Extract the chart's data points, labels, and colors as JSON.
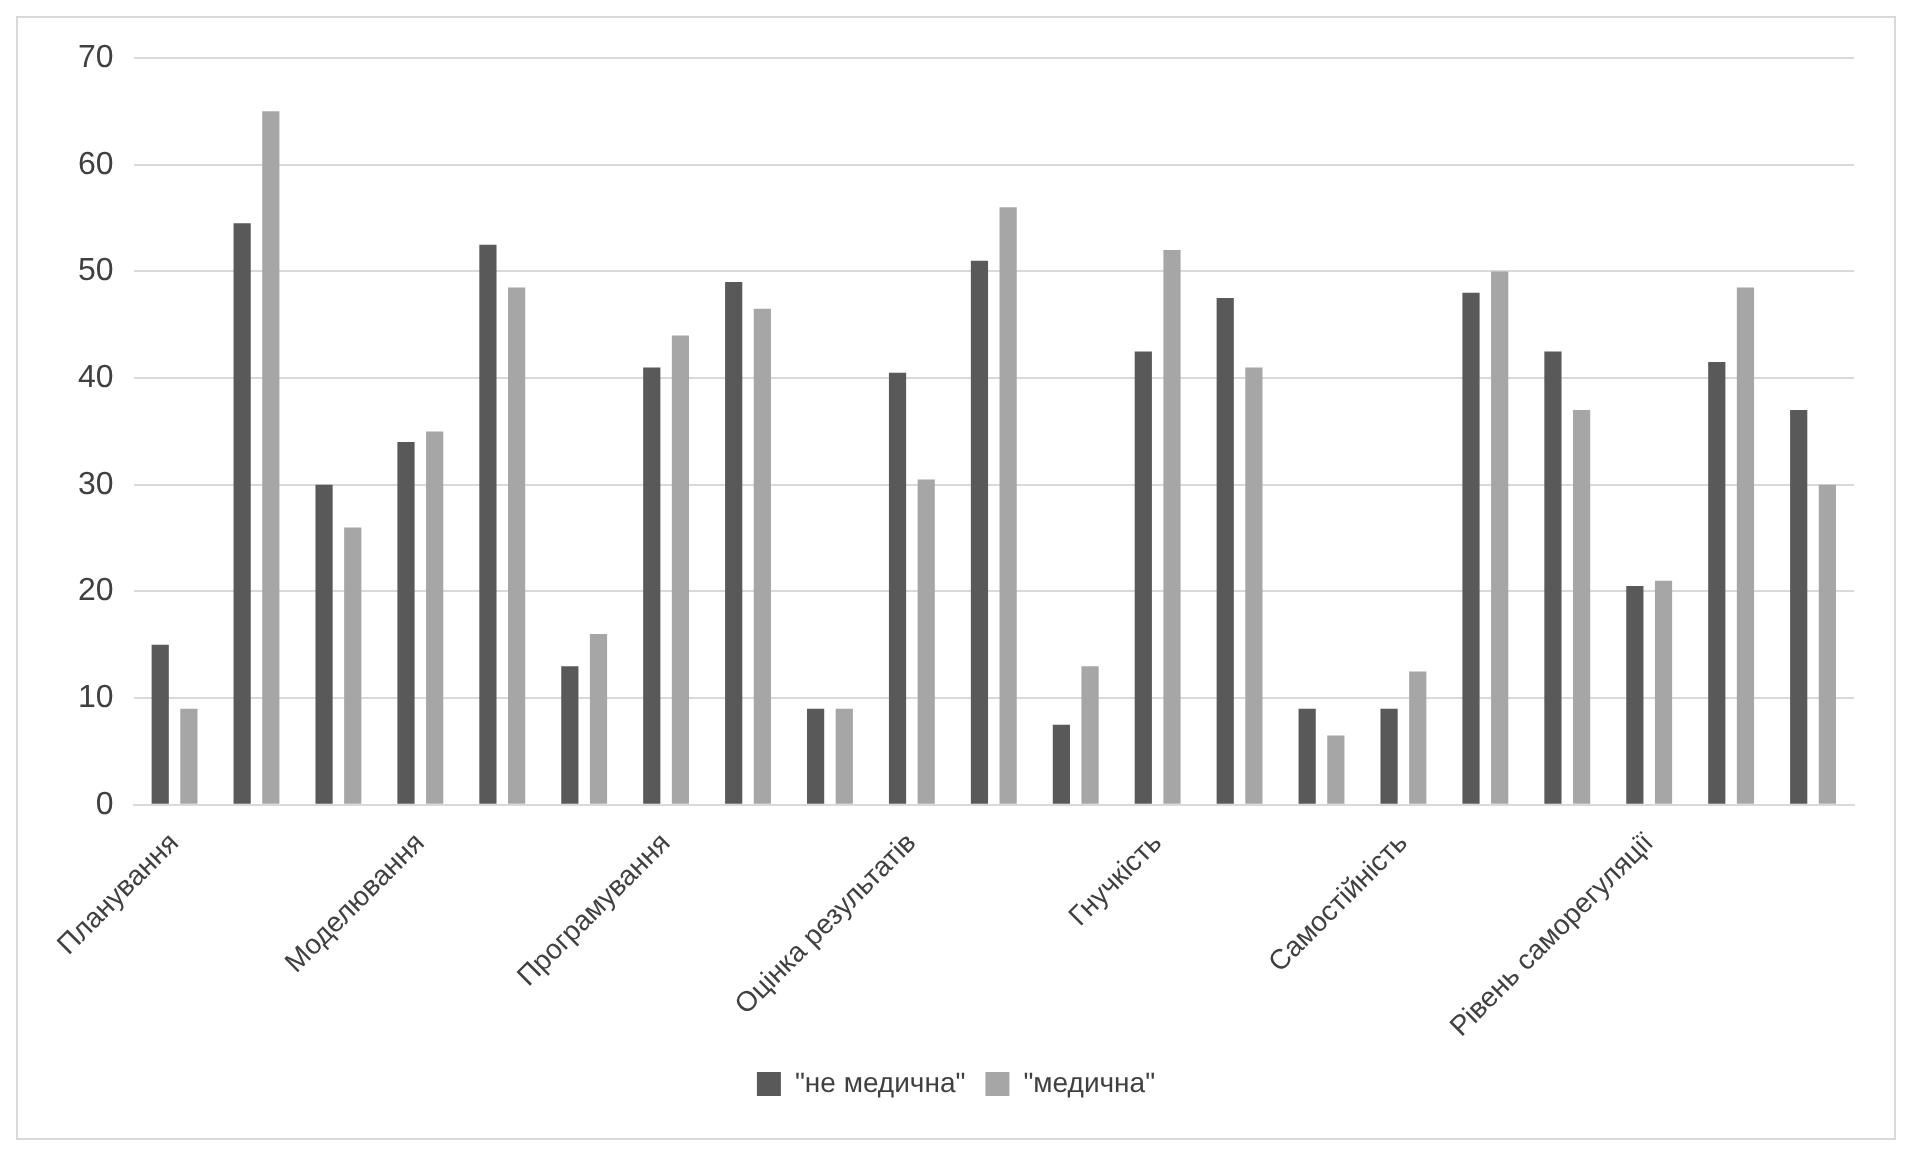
{
  "chart_data": {
    "type": "bar",
    "categories": [
      "Планування",
      null,
      null,
      "Моделювання",
      null,
      null,
      "Програмування",
      null,
      null,
      "Оцінка результатів",
      null,
      null,
      "Гнучкість",
      null,
      null,
      "Самостійність",
      null,
      null,
      "Рівень саморегуляції",
      null,
      null
    ],
    "series": [
      {
        "name": "\"не медична\"",
        "color": "#595959",
        "values": [
          15,
          54.5,
          30,
          34,
          52.5,
          13,
          41,
          49,
          9,
          40.5,
          51,
          7.5,
          42.5,
          47.5,
          9,
          9,
          48,
          42.5,
          20.5,
          41.5,
          37
        ]
      },
      {
        "name": "\"медична\"",
        "color": "#a6a6a6",
        "values": [
          9,
          65,
          26,
          35,
          48.5,
          16,
          44,
          46.5,
          9,
          30.5,
          56,
          13,
          52,
          41,
          6.5,
          12.5,
          50,
          37,
          21,
          48.5,
          30
        ]
      }
    ],
    "ylim": [
      0,
      70
    ],
    "yticks": [
      0,
      10,
      20,
      30,
      40,
      50,
      60,
      70
    ],
    "grid": "y",
    "legend": "bottom"
  }
}
